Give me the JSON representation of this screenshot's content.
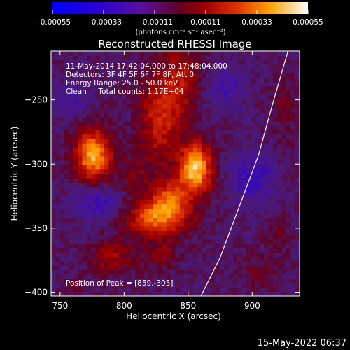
{
  "chart_data": {
    "type": "heatmap",
    "title": "Reconstructed RHESSI Image",
    "xlabel": "Heliocentric X (arcsec)",
    "ylabel": "Heliocentric Y (arcsec)",
    "xlim": [
      743,
      937
    ],
    "ylim": [
      -403,
      -212
    ],
    "x_ticks": [
      750,
      800,
      850,
      900
    ],
    "y_ticks": [
      -400,
      -350,
      -300,
      -250
    ],
    "colorbar": {
      "min": -0.00055,
      "max": 0.00055,
      "ticks": [
        "-0.00055",
        "-0.00033",
        "-0.00011",
        "0.00011",
        "0.00033",
        "0.00055"
      ],
      "units_label": "(photons cm⁻² s⁻¹ asec⁻²)"
    },
    "annotations": [
      "11-May-2014 17:42:04.000 to 17:48:04.000",
      "Detectors: 3F 4F 5F 6F 7F 8F, Att 0",
      "Energy Range: 25.0 - 50.0 keV",
      "Clean     Total counts: 1.17E+04"
    ],
    "peak_label": "Position of Peak = [859,-305]",
    "peak": [
      859,
      -305
    ],
    "sources": [
      {
        "x": 776,
        "y": -293,
        "amp": 0.0005,
        "sx": 10,
        "sy": 14
      },
      {
        "x": 856,
        "y": -303,
        "amp": 0.00055,
        "sx": 9,
        "sy": 14
      },
      {
        "x": 826,
        "y": -342,
        "amp": 0.0004,
        "sx": 17,
        "sy": 10
      },
      {
        "x": 836,
        "y": -325,
        "amp": 0.0003,
        "sx": 10,
        "sy": 10
      },
      {
        "x": 828,
        "y": -262,
        "amp": 0.00028,
        "sx": 11,
        "sy": 26
      },
      {
        "x": 846,
        "y": -232,
        "amp": 0.0002,
        "sx": 9,
        "sy": 22
      },
      {
        "x": 790,
        "y": -372,
        "amp": 0.00018,
        "sx": 12,
        "sy": 10
      },
      {
        "x": 828,
        "y": -370,
        "amp": 0.00014,
        "sx": 9,
        "sy": 8
      },
      {
        "x": 808,
        "y": -310,
        "amp": 0.0001,
        "sx": 9,
        "sy": 14
      },
      {
        "x": 920,
        "y": -355,
        "amp": 0.0001,
        "sx": 7,
        "sy": 9
      },
      {
        "x": 905,
        "y": -385,
        "amp": 0.0001,
        "sx": 10,
        "sy": 8
      },
      {
        "x": 925,
        "y": -255,
        "amp": 0.0001,
        "sx": 6,
        "sy": 18
      },
      {
        "x": 760,
        "y": -395,
        "amp": 6e-05,
        "sx": 8,
        "sy": 6
      },
      {
        "x": 900,
        "y": -310,
        "amp": -0.0002,
        "sx": 12,
        "sy": 14
      },
      {
        "x": 780,
        "y": -330,
        "amp": -0.00018,
        "sx": 14,
        "sy": 10
      },
      {
        "x": 880,
        "y": -240,
        "amp": -0.00015,
        "sx": 10,
        "sy": 12
      },
      {
        "x": 760,
        "y": -250,
        "amp": -0.00012,
        "sx": 10,
        "sy": 10
      }
    ],
    "background": -9e-05,
    "limb_curve": [
      [
        860,
        -403
      ],
      [
        875,
        -373
      ],
      [
        890,
        -333
      ],
      [
        905,
        -293
      ],
      [
        916,
        -253
      ],
      [
        928,
        -212
      ]
    ]
  },
  "footer_date": "15-May-2022 06:37"
}
